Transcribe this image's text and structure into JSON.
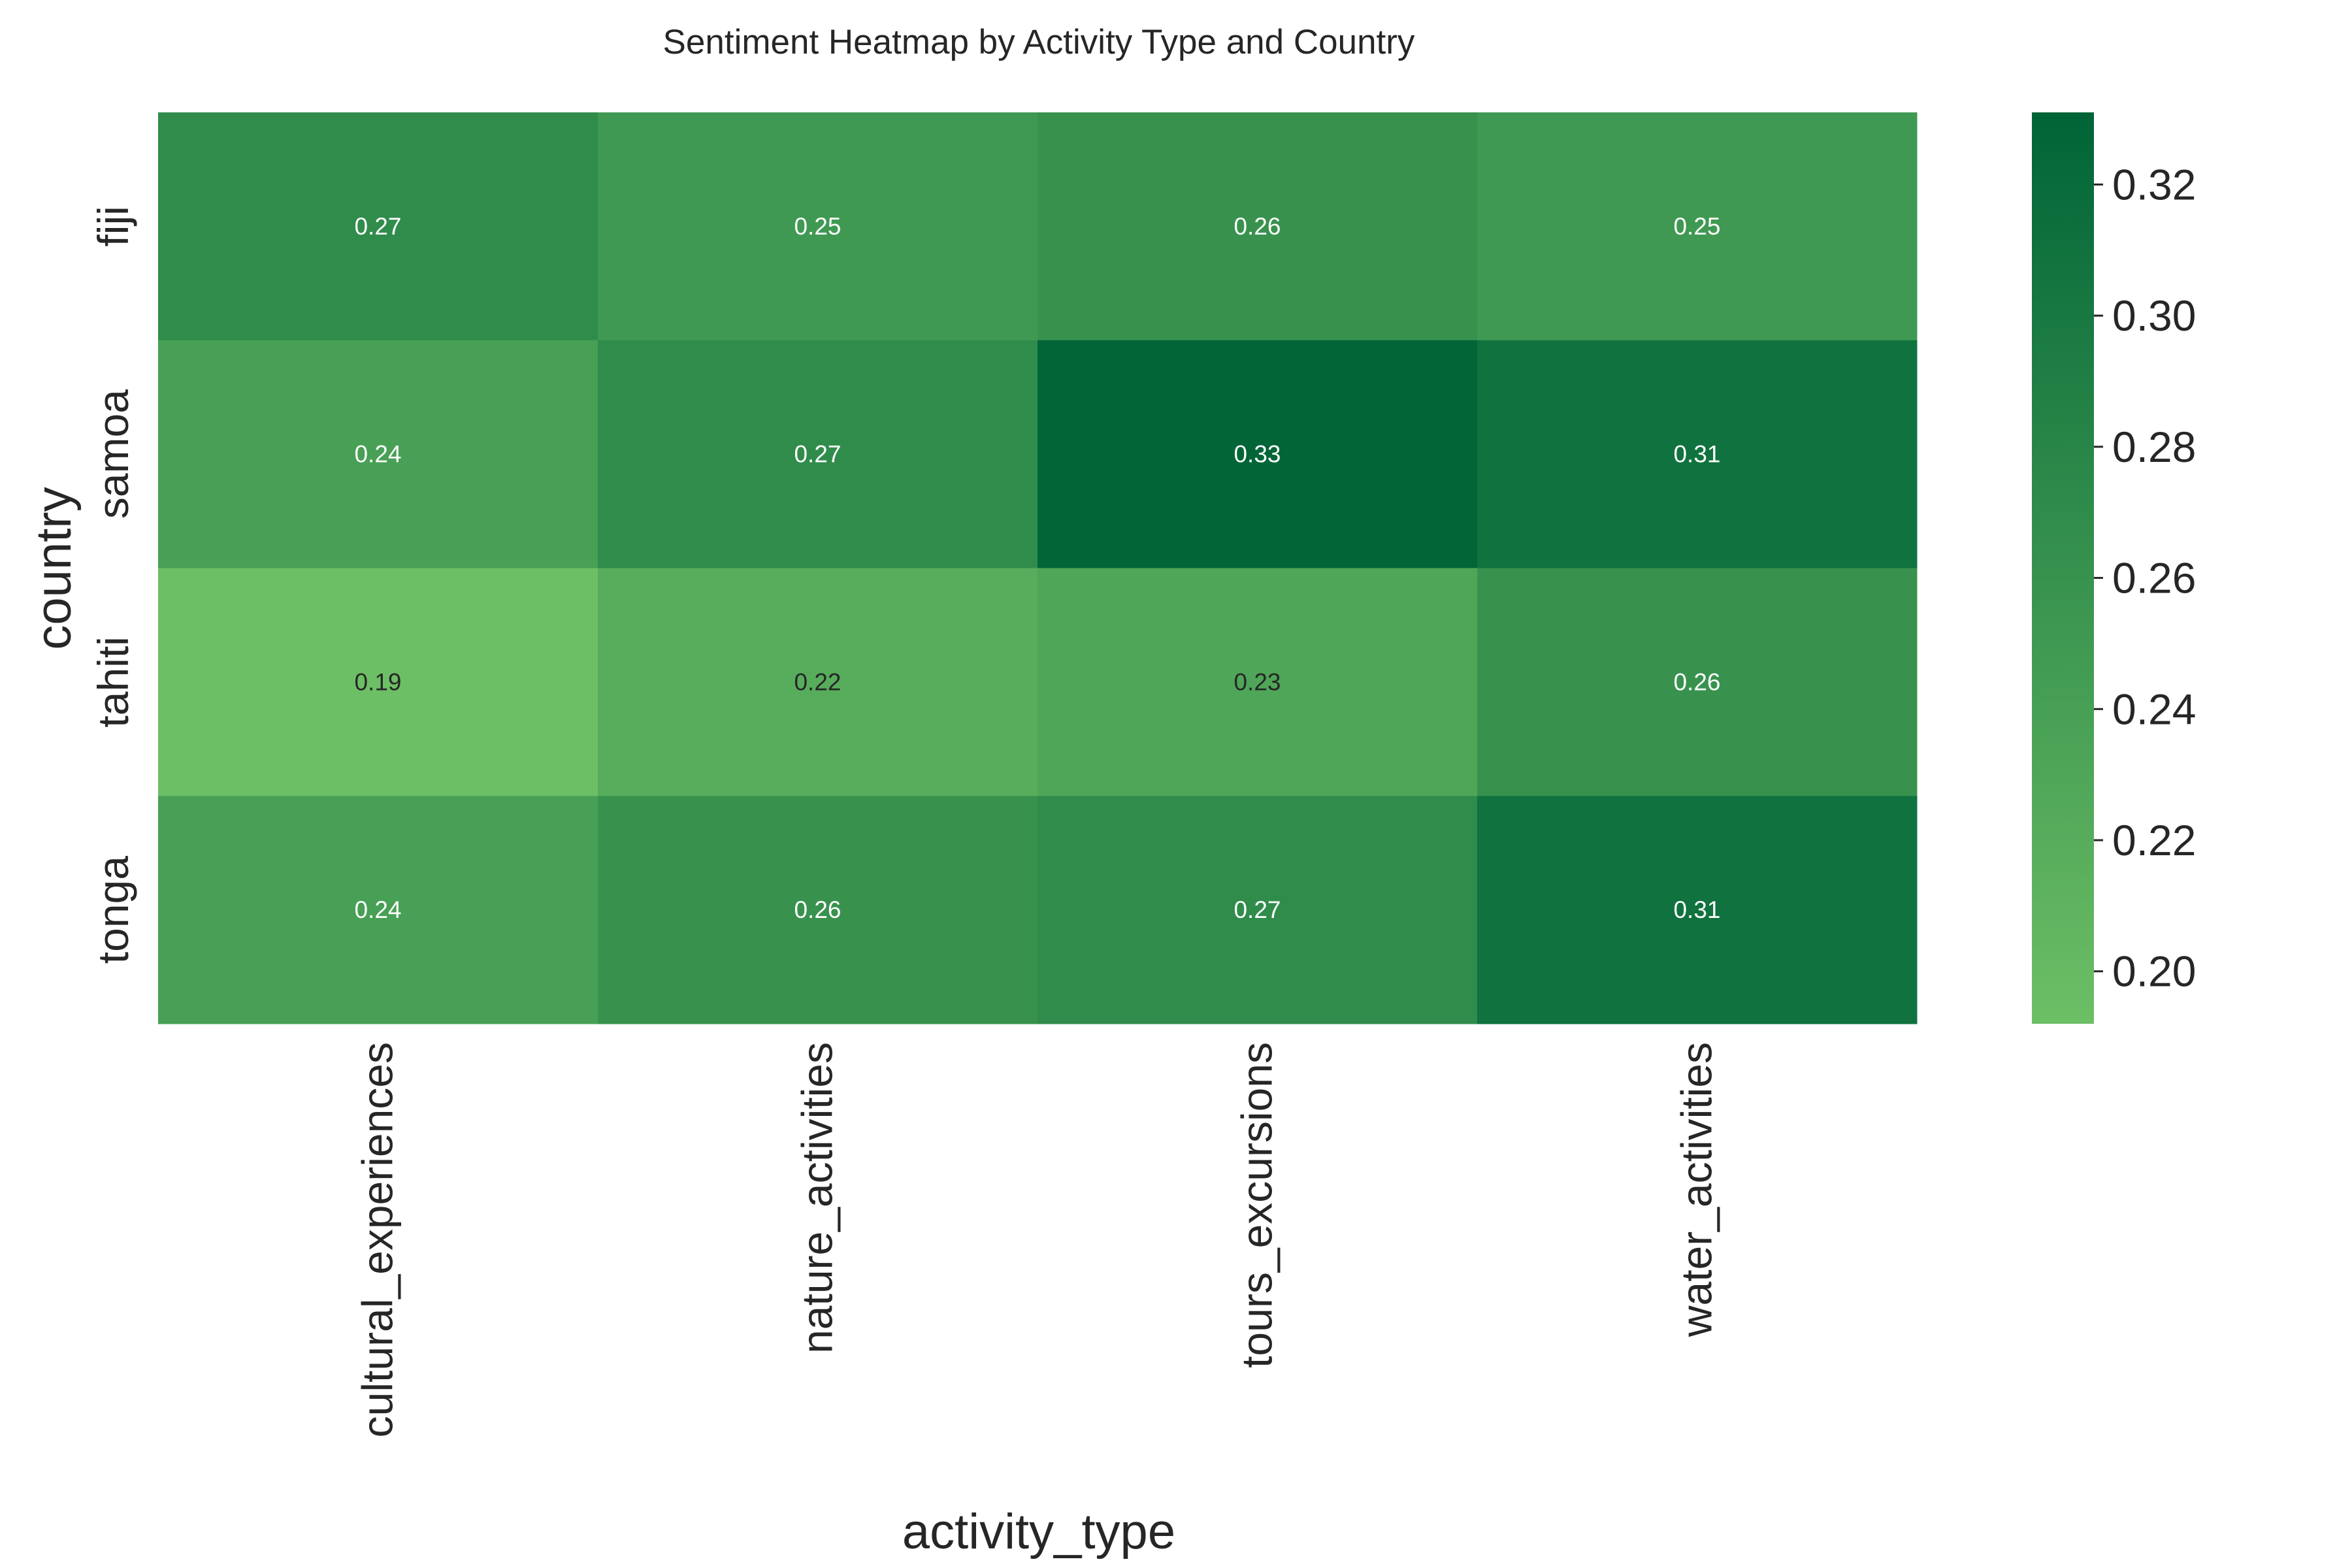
{
  "chart_data": {
    "type": "heatmap",
    "title": "Sentiment Heatmap by Activity Type and Country",
    "xlabel": "activity_type",
    "ylabel": "country",
    "x_categories": [
      "cultural_experiences",
      "nature_activities",
      "tours_excursions",
      "water_activities"
    ],
    "y_categories": [
      "fiji",
      "samoa",
      "tahiti",
      "tonga"
    ],
    "values": [
      [
        0.27,
        0.25,
        0.26,
        0.25
      ],
      [
        0.24,
        0.27,
        0.33,
        0.31
      ],
      [
        0.19,
        0.22,
        0.23,
        0.26
      ],
      [
        0.24,
        0.26,
        0.27,
        0.31
      ]
    ],
    "colorbar": {
      "min": 0.192,
      "max": 0.331,
      "ticks": [
        0.2,
        0.22,
        0.24,
        0.26,
        0.28,
        0.3,
        0.32
      ],
      "tick_labels": [
        "0.20",
        "0.22",
        "0.24",
        "0.26",
        "0.28",
        "0.30",
        "0.32"
      ],
      "colormap": "Greens",
      "low_color": "#6dbf65",
      "high_color": "#006437"
    },
    "annotate": true,
    "grid": false
  }
}
